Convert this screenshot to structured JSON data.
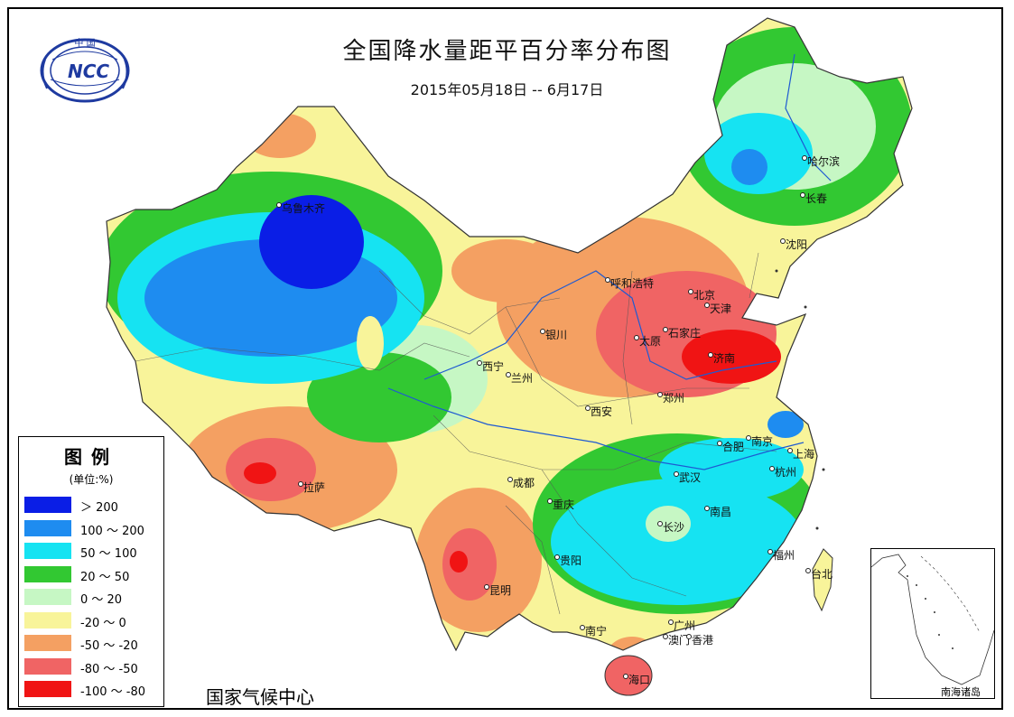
{
  "title": "全国降水量距平百分率分布图",
  "subtitle": "2015年05月18日 -- 6月17日",
  "organization": "国家气候中心",
  "logo": {
    "text": "NCC",
    "arc_text": "中 国"
  },
  "legend": {
    "title": "图例",
    "unit": "(单位:%)",
    "items": [
      {
        "label": "＞ 200",
        "color": "#0a1ee6"
      },
      {
        "label": "100 ～ 200",
        "color": "#1e8cf0"
      },
      {
        "label": "50 ～ 100",
        "color": "#16e3f2"
      },
      {
        "label": "20 ～ 50",
        "color": "#32c832"
      },
      {
        "label": "0 ～ 20",
        "color": "#c6f7c4"
      },
      {
        "label": "-20 ～ 0",
        "color": "#f8f49a"
      },
      {
        "label": "-50 ～ -20",
        "color": "#f4a062"
      },
      {
        "label": "-80 ～ -50",
        "color": "#f06464"
      },
      {
        "label": "-100 ～ -80",
        "color": "#f01414"
      }
    ]
  },
  "inset_label": "南海诸岛",
  "cities": [
    "乌鲁木齐",
    "哈尔滨",
    "长春",
    "沈阳",
    "呼和浩特",
    "北京",
    "天津",
    "石家庄",
    "太原",
    "济南",
    "银川",
    "西宁",
    "兰州",
    "西安",
    "郑州",
    "合肥",
    "南京",
    "上海",
    "杭州",
    "武汉",
    "拉萨",
    "成都",
    "重庆",
    "长沙",
    "南昌",
    "贵阳",
    "昆明",
    "福州",
    "台北",
    "南宁",
    "广州",
    "澳门",
    "香港",
    "海口"
  ]
}
